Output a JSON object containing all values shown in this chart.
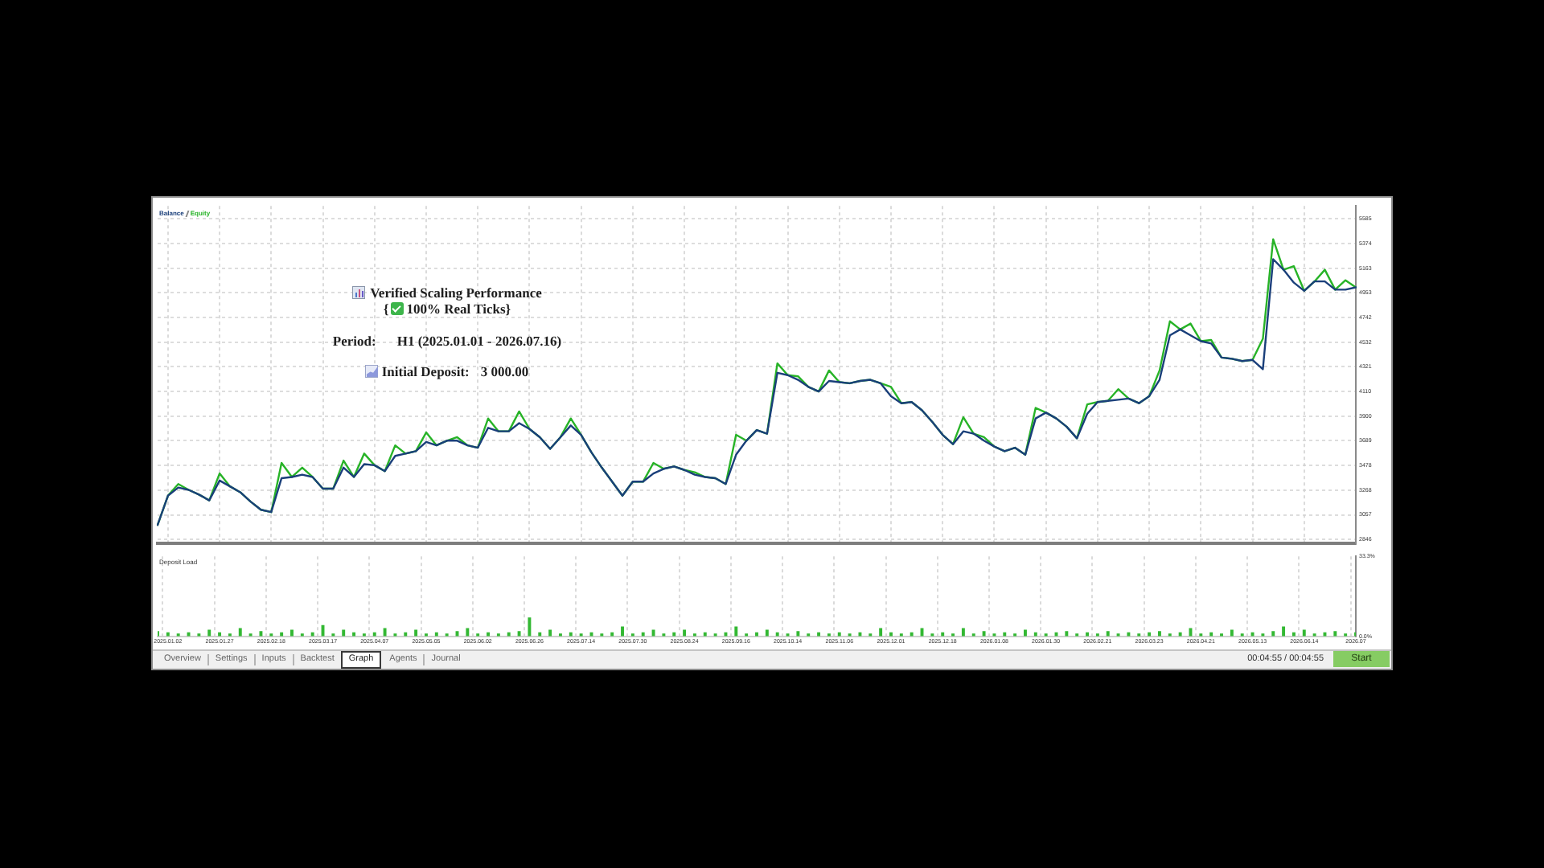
{
  "chart_data": [
    {
      "type": "line",
      "categories": [
        null,
        "2025.01.02",
        null,
        null,
        null,
        null,
        "2025.01.27",
        null,
        null,
        null,
        null,
        "2025.02.18",
        null,
        null,
        null,
        null,
        "2025.03.17",
        null,
        null,
        null,
        null,
        "2025.04.07",
        null,
        null,
        null,
        null,
        "2025.05.05",
        null,
        null,
        null,
        null,
        "2025.06.02",
        null,
        null,
        null,
        null,
        "2025.06.26",
        null,
        null,
        null,
        null,
        "2025.07.14",
        null,
        null,
        null,
        null,
        "2025.07.30",
        null,
        null,
        null,
        null,
        "2025.08.24",
        null,
        null,
        null,
        null,
        "2025.09.16",
        null,
        null,
        null,
        null,
        "2025.10.14",
        null,
        null,
        null,
        null,
        "2025.11.06",
        null,
        null,
        null,
        null,
        "2025.12.01",
        null,
        null,
        null,
        null,
        "2025.12.18",
        null,
        null,
        null,
        null,
        "2026.01.08",
        null,
        null,
        null,
        null,
        "2026.01.30",
        null,
        null,
        null,
        null,
        "2026.02.21",
        null,
        null,
        null,
        null,
        "2026.03.23",
        null,
        null,
        null,
        null,
        "2026.04.21",
        null,
        null,
        null,
        null,
        "2026.05.13",
        null,
        null,
        null,
        null,
        "2026.06.14",
        null,
        null,
        null,
        null,
        "2026.07"
      ],
      "series": [
        {
          "name": "Balance",
          "color": "#1a3f7a",
          "values": [
            2970,
            3220,
            3290,
            3270,
            3230,
            3180,
            3350,
            3300,
            3250,
            3170,
            3100,
            3080,
            3370,
            3380,
            3400,
            3380,
            3280,
            3280,
            3460,
            3380,
            3490,
            3480,
            3430,
            3560,
            3580,
            3600,
            3680,
            3650,
            3690,
            3690,
            3650,
            3630,
            3800,
            3770,
            3770,
            3840,
            3790,
            3720,
            3620,
            3720,
            3820,
            3740,
            3590,
            3460,
            3340,
            3220,
            3340,
            3340,
            3410,
            3450,
            3470,
            3440,
            3400,
            3380,
            3370,
            3320,
            3570,
            3690,
            3780,
            3750,
            4270,
            4250,
            4210,
            4150,
            4110,
            4200,
            4190,
            4180,
            4200,
            4210,
            4180,
            4070,
            4010,
            4020,
            3950,
            3850,
            3740,
            3660,
            3770,
            3750,
            3690,
            3640,
            3600,
            3630,
            3570,
            3880,
            3930,
            3880,
            3810,
            3710,
            3920,
            4020,
            4030,
            4040,
            4050,
            4010,
            4070,
            4210,
            4590,
            4640,
            4590,
            4540,
            4520,
            4400,
            4390,
            4370,
            4380,
            4300,
            5240,
            5150,
            5040,
            4970,
            5050,
            5050,
            4980,
            4980,
            5000
          ]
        },
        {
          "name": "Equity",
          "color": "#27b327",
          "values": [
            2970,
            3220,
            3320,
            3270,
            3230,
            3180,
            3410,
            3300,
            3250,
            3170,
            3100,
            3080,
            3500,
            3380,
            3460,
            3380,
            3280,
            3280,
            3520,
            3380,
            3580,
            3480,
            3430,
            3650,
            3580,
            3600,
            3760,
            3650,
            3690,
            3720,
            3650,
            3630,
            3880,
            3770,
            3770,
            3940,
            3790,
            3720,
            3620,
            3720,
            3880,
            3740,
            3590,
            3460,
            3340,
            3220,
            3340,
            3340,
            3500,
            3450,
            3470,
            3440,
            3420,
            3380,
            3370,
            3320,
            3740,
            3690,
            3780,
            3750,
            4350,
            4250,
            4240,
            4150,
            4110,
            4290,
            4190,
            4180,
            4200,
            4210,
            4180,
            4150,
            4010,
            4020,
            3950,
            3850,
            3740,
            3660,
            3890,
            3750,
            3720,
            3640,
            3600,
            3630,
            3570,
            3970,
            3930,
            3880,
            3810,
            3710,
            4000,
            4020,
            4030,
            4130,
            4050,
            4010,
            4070,
            4290,
            4710,
            4640,
            4690,
            4540,
            4550,
            4400,
            4390,
            4370,
            4380,
            4560,
            5410,
            5150,
            5180,
            4970,
            5050,
            5150,
            4980,
            5060,
            5000
          ]
        }
      ],
      "ylim": [
        2815,
        5695
      ],
      "yticks": [
        2846,
        3057,
        3268,
        3478,
        3689,
        3900,
        4110,
        4321,
        4532,
        4742,
        4953,
        5163,
        5374,
        5585
      ],
      "tick_labels": "y",
      "grid": true,
      "legend": "top left",
      "marker": "none",
      "line_style": "solid",
      "annotations": [
        "Verified Scaling Performance",
        "{",
        "100% Real Ticks}",
        "Period:",
        "H1 (2025.01.01 - 2026.07.16)",
        "Initial Deposit:",
        "3 000.00"
      ]
    },
    {
      "type": "bar",
      "title": "Deposit Load",
      "categories": [
        null,
        "2025.01.02",
        null,
        null,
        null,
        null,
        "2025.01.27",
        null,
        null,
        null,
        null,
        "2025.02.18",
        null,
        null,
        null,
        null,
        "2025.03.17",
        null,
        null,
        null,
        null,
        "2025.04.07",
        null,
        null,
        null,
        null,
        "2025.05.05",
        null,
        null,
        null,
        null,
        "2025.06.02",
        null,
        null,
        null,
        null,
        "2025.06.26",
        null,
        null,
        null,
        null,
        "2025.07.14",
        null,
        null,
        null,
        null,
        "2025.07.30",
        null,
        null,
        null,
        null,
        "2025.08.24",
        null,
        null,
        null,
        null,
        "2025.09.16",
        null,
        null,
        null,
        null,
        "2025.10.14",
        null,
        null,
        null,
        null,
        "2025.11.06",
        null,
        null,
        null,
        null,
        "2025.12.01",
        null,
        null,
        null,
        null,
        "2025.12.18",
        null,
        null,
        null,
        null,
        "2026.01.08",
        null,
        null,
        null,
        null,
        "2026.01.30",
        null,
        null,
        null,
        null,
        "2026.02.21",
        null,
        null,
        null,
        null,
        "2026.03.23",
        null,
        null,
        null,
        null,
        "2026.04.21",
        null,
        null,
        null,
        null,
        "2026.05.13",
        null,
        null,
        null,
        null,
        "2026.06.14",
        null,
        null,
        null,
        null,
        "2026.07"
      ],
      "color": "#33b833",
      "values": [
        1.9,
        1.4,
        0.9,
        1.4,
        0.9,
        2.5,
        1.4,
        0.9,
        3.2,
        0.9,
        1.9,
        0.9,
        1.4,
        2.5,
        0.9,
        1.4,
        4.4,
        0.9,
        2.5,
        1.4,
        0.9,
        1.4,
        3.2,
        0.9,
        1.4,
        2.5,
        0.9,
        1.4,
        0.9,
        1.9,
        3.2,
        0.9,
        1.4,
        0.9,
        1.4,
        1.9,
        7.6,
        1.4,
        2.5,
        0.9,
        1.4,
        0.9,
        1.4,
        0.9,
        1.4,
        3.8,
        0.9,
        1.4,
        2.5,
        0.9,
        1.4,
        2.5,
        0.9,
        1.4,
        0.9,
        1.4,
        3.8,
        0.9,
        1.4,
        2.5,
        1.4,
        0.9,
        1.9,
        0.9,
        1.4,
        0.9,
        1.4,
        0.9,
        1.4,
        0.9,
        3.2,
        1.4,
        0.9,
        1.4,
        3.2,
        0.9,
        1.4,
        0.9,
        3.2,
        0.9,
        1.9,
        0.9,
        1.4,
        0.9,
        2.5,
        1.4,
        0.9,
        1.4,
        1.9,
        0.9,
        1.4,
        0.9,
        1.9,
        0.9,
        1.4,
        0.9,
        1.4,
        1.9,
        0.9,
        1.4,
        3.2,
        0.9,
        1.4,
        0.9,
        2.5,
        0.9,
        1.4,
        0.9,
        1.9,
        3.8,
        1.4,
        2.5,
        0.9,
        1.4,
        1.9,
        0.9,
        1.4
      ],
      "ylim": [
        0,
        33.3
      ],
      "yticks": [
        {
          "value": 0,
          "label": "0.0%"
        },
        {
          "value": 33.3,
          "label": "33.3%"
        }
      ],
      "grid": "x"
    },
    {
      "type": "other",
      "annotations": [
        "Overview",
        "Settings",
        "Inputs",
        "Backtest",
        "Graph",
        "Agents",
        "Journal",
        "00:04:55 / 00:04:55",
        "Start"
      ]
    }
  ]
}
